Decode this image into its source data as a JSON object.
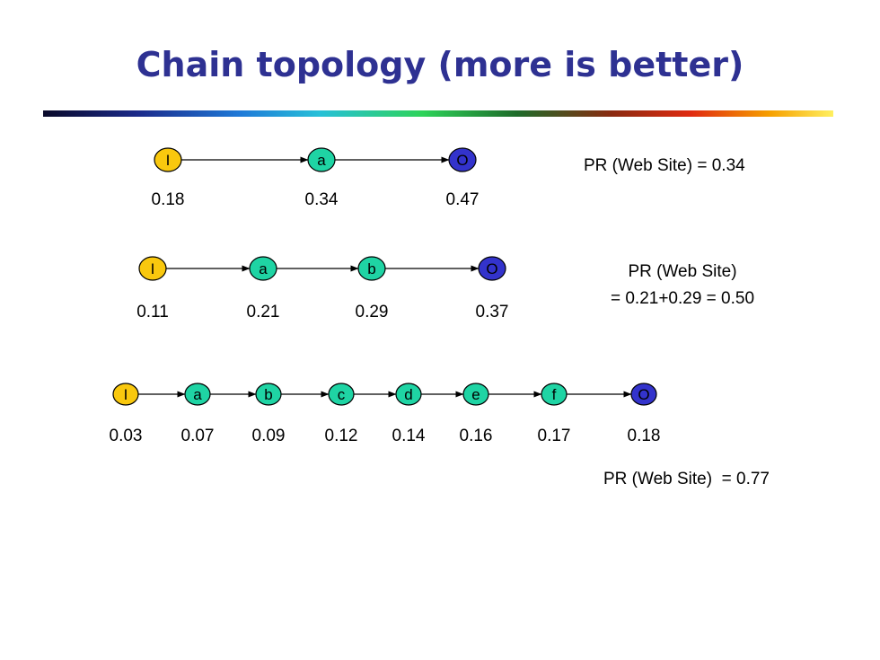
{
  "title": "Chain topology (more is better)",
  "colors": {
    "title": "#2e3192",
    "input_node": "#f9c80e",
    "middle_node": "#1fd4a4",
    "output_node": "#3333cc"
  },
  "chains": [
    {
      "nodes": [
        "I",
        "a",
        "O"
      ],
      "values": [
        "0.18",
        "0.34",
        "0.47"
      ],
      "pr_lines": [
        "PR (Web Site) = 0.34"
      ]
    },
    {
      "nodes": [
        "I",
        "a",
        "b",
        "O"
      ],
      "values": [
        "0.11",
        "0.21",
        "0.29",
        "0.37"
      ],
      "pr_lines": [
        "PR (Web Site)",
        "= 0.21+0.29 = 0.50"
      ]
    },
    {
      "nodes": [
        "I",
        "a",
        "b",
        "c",
        "d",
        "e",
        "f",
        "O"
      ],
      "values": [
        "0.03",
        "0.07",
        "0.09",
        "0.12",
        "0.14",
        "0.16",
        "0.17",
        "0.18"
      ],
      "pr_lines": [
        "PR (Web Site)  = 0.77"
      ]
    }
  ]
}
